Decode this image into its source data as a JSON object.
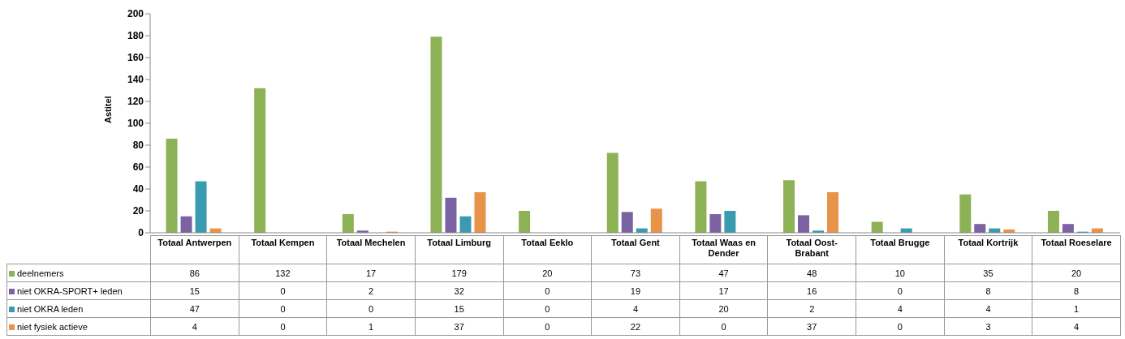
{
  "chart_data": {
    "type": "bar",
    "ylabel": "Astitel",
    "categories": [
      "Totaal Antwerpen",
      "Totaal Kempen",
      "Totaal Mechelen",
      "Totaal Limburg",
      "Totaal Eeklo",
      "Totaal Gent",
      "Totaal Waas en Dender",
      "Totaal Oost-Brabant",
      "Totaal Brugge",
      "Totaal Kortrijk",
      "Totaal Roeselare"
    ],
    "series": [
      {
        "name": "deelnemers",
        "color": "#8db255",
        "values": [
          86,
          132,
          17,
          179,
          20,
          73,
          47,
          48,
          10,
          35,
          20
        ]
      },
      {
        "name": "niet OKRA-SPORT+ leden",
        "color": "#7b62a3",
        "values": [
          15,
          0,
          2,
          32,
          0,
          19,
          17,
          16,
          0,
          8,
          8
        ]
      },
      {
        "name": "niet OKRA leden",
        "color": "#3a9bb0",
        "values": [
          47,
          0,
          0,
          15,
          0,
          4,
          20,
          2,
          4,
          4,
          1
        ]
      },
      {
        "name": "niet fysiek actieve",
        "color": "#e8934a",
        "values": [
          4,
          0,
          1,
          37,
          0,
          22,
          0,
          37,
          0,
          3,
          4
        ]
      }
    ],
    "ylim": [
      0,
      200
    ],
    "yticks": [
      0,
      20,
      40,
      60,
      80,
      100,
      120,
      140,
      160,
      180,
      200
    ],
    "grid": false,
    "legend": "bottom",
    "data_labels": true
  }
}
